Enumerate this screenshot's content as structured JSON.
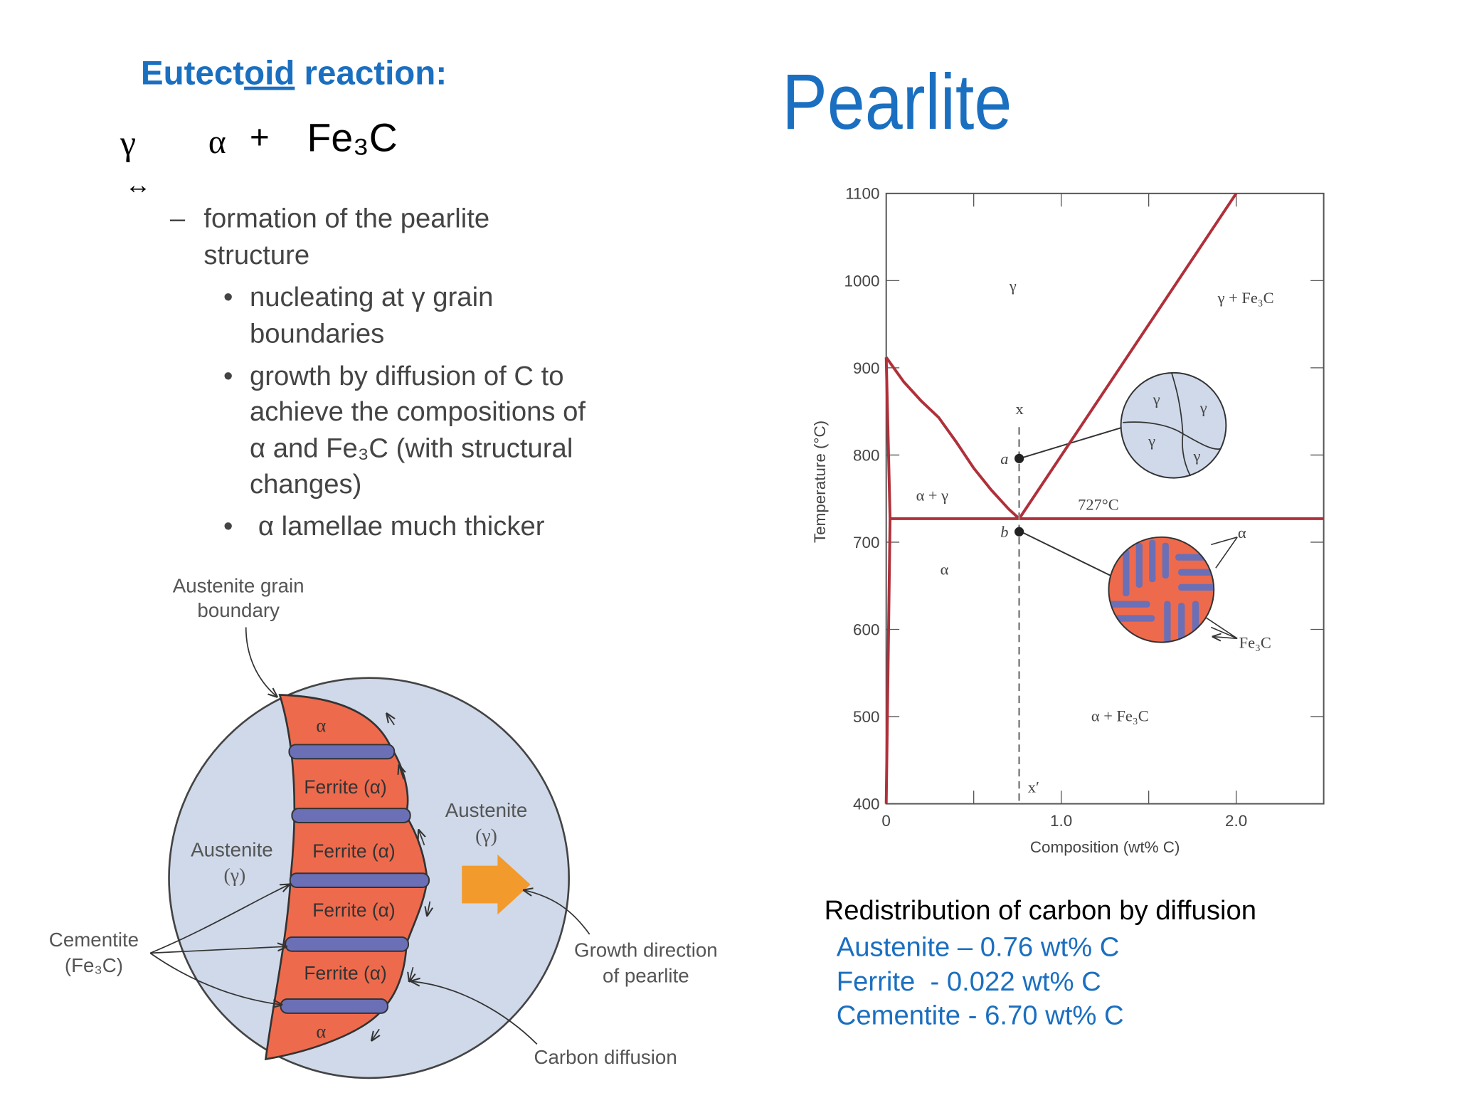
{
  "heading": {
    "parts": [
      "Eutect",
      "oid",
      " reaction:"
    ]
  },
  "reaction": {
    "reactant": "γ",
    "arrow": "↔",
    "product1": "α",
    "plus": "+",
    "product2": "Fe₃C"
  },
  "bullets": [
    {
      "lines": [
        "formation of the pearlite",
        "structure"
      ]
    },
    {
      "lines": [
        "nucleating at γ grain",
        "boundaries"
      ]
    },
    {
      "lines": [
        "growth by diffusion of C to",
        "achieve the compositions of",
        "α and Fe₃C (with structural",
        "changes)"
      ]
    },
    {
      "lines": [
        "α lamellae much thicker"
      ]
    }
  ],
  "title": "Pearlite",
  "figure": {
    "grain_boundary": [
      "Austenite grain",
      "boundary"
    ],
    "austenite_right": [
      "Austenite",
      "(γ)"
    ],
    "austenite_left": [
      "Austenite",
      "(γ)"
    ],
    "cementite": [
      "Cementite",
      "(Fe₃C)"
    ],
    "growth": [
      "Growth direction",
      "of pearlite"
    ],
    "carbon": "Carbon diffusion",
    "ferrite": [
      "Ferrite (α)",
      "Ferrite (α)",
      "Ferrite (α)",
      "Ferrite (α)"
    ],
    "alpha": [
      "α",
      "α"
    ]
  },
  "chart_data": {
    "type": "line",
    "xlabel": "Composition (wt% C)",
    "ylabel": "Temperature (°C)",
    "xlim": [
      0,
      2.5
    ],
    "ylim": [
      400,
      1100
    ],
    "xticks": [
      0,
      {
        "value": 1,
        "label": "1.0"
      },
      {
        "value": 2,
        "label": "2.0"
      }
    ],
    "xminor": [
      0.5,
      1.5
    ],
    "yticks": [
      400,
      500,
      600,
      700,
      800,
      900,
      1000,
      1100
    ],
    "series": [
      {
        "color": "#b0303a",
        "x": [
          0,
          0.1,
          0.2,
          0.3,
          0.4,
          0.5,
          0.6,
          0.7,
          0.76
        ],
        "values": [
          912,
          884,
          862,
          843,
          815,
          785,
          760,
          738,
          727
        ]
      },
      {
        "color": "#b0303a",
        "x": [
          0.76,
          2.0
        ],
        "values": [
          727,
          1100
        ]
      },
      {
        "color": "#b0303a",
        "x": [
          0.022,
          2.5
        ],
        "values": [
          727,
          727
        ]
      },
      {
        "color": "#b0303a",
        "x": [
          0,
          0.022,
          0
        ],
        "values": [
          912,
          727,
          400
        ]
      },
      {
        "color": "#888888",
        "dashed": true,
        "x": [
          0.76,
          0.76
        ],
        "values": [
          832,
          400
        ]
      }
    ],
    "points": [
      {
        "label": "a",
        "x": 0.76,
        "y": 796
      },
      {
        "label": "b",
        "x": 0.76,
        "y": 712
      }
    ],
    "annotations": [
      "γ",
      "γ + Fe₃C",
      "α + γ",
      "727°C",
      "α + Fe₃C",
      "α",
      "x",
      "x′",
      "γ",
      "γ",
      "γ",
      "γ",
      "α",
      "Fe₃C"
    ]
  },
  "notes": {
    "heading": "Redistribution of carbon by diffusion",
    "lines": [
      "Austenite – 0.76 wt% C",
      "Ferrite  - 0.022 wt% C",
      "Cementite - 6.70 wt% C"
    ]
  }
}
